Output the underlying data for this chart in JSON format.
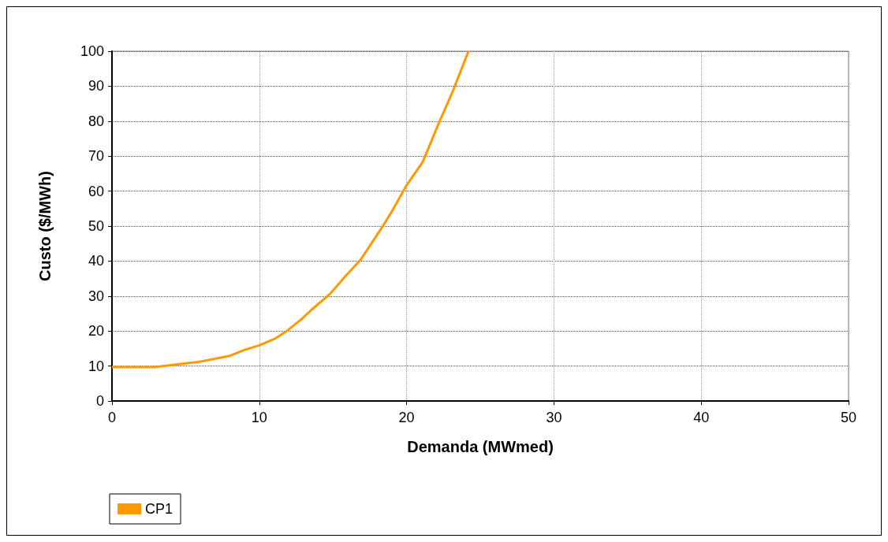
{
  "chart_data": {
    "type": "line",
    "xlabel": "Demanda (MWmed)",
    "ylabel": "Custo ($/MWh)",
    "series": [
      {
        "name": "CP1",
        "color": "#ff9900",
        "x": [
          0,
          2.9,
          5.9,
          8,
          9,
          10,
          11.1,
          11.8,
          12.9,
          13.5,
          14.8,
          15.9,
          16.9,
          18.4,
          19,
          20,
          21.1,
          22.2,
          23.1,
          24.2
        ],
        "values": [
          9.7,
          9.7,
          11.2,
          12.9,
          14.6,
          15.9,
          17.9,
          19.8,
          23.5,
          25.9,
          30.6,
          35.9,
          40.5,
          50.1,
          54.2,
          61.7,
          68.4,
          79.6,
          88.2,
          100
        ]
      }
    ],
    "xlim": [
      0,
      50
    ],
    "xticks": [
      0,
      10,
      20,
      30,
      40,
      50
    ],
    "ylim": [
      0,
      100
    ],
    "yticks": [
      0,
      10,
      20,
      30,
      40,
      50,
      60,
      70,
      80,
      90,
      100
    ],
    "grid": true,
    "legend": "bottom",
    "marker": "none",
    "line_style": "solid"
  }
}
